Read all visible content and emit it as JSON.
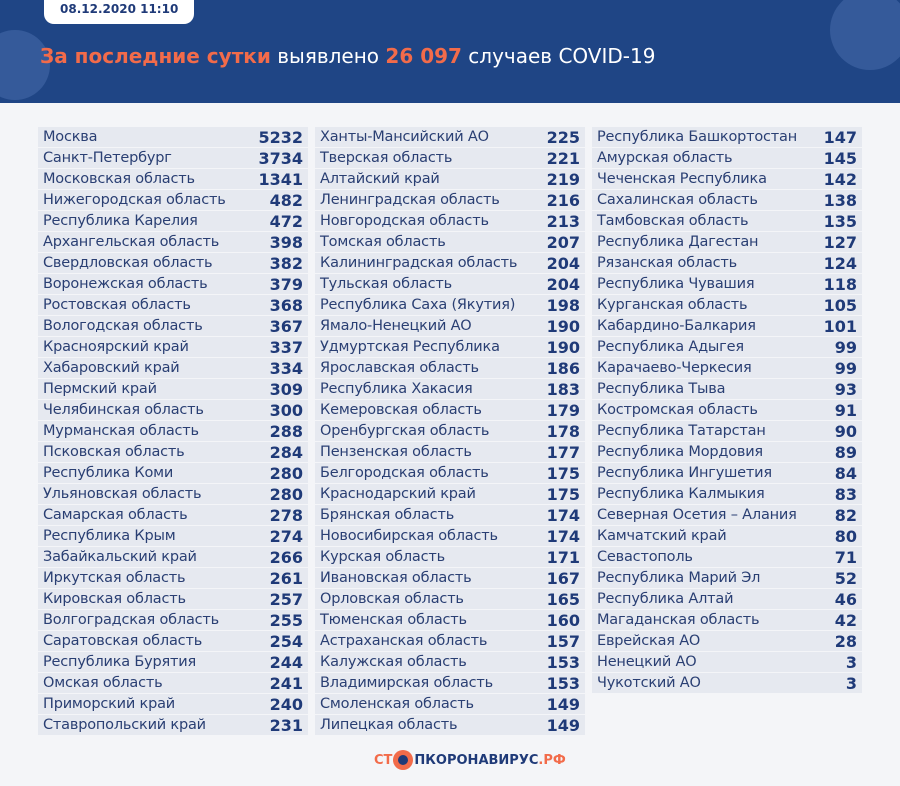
{
  "header": {
    "date": "08.12.2020 11:10",
    "title_hl1": "За последние сутки",
    "title_mid": " выявлено ",
    "title_hl2": "26 097",
    "title_end": " случаев COVID-19"
  },
  "colors": {
    "header": "#1f4585",
    "accent": "#f26b4a",
    "text": "#1f3a78"
  },
  "columns": [
    [
      [
        "Москва",
        "5232"
      ],
      [
        "Санкт-Петербург",
        "3734"
      ],
      [
        "Московская область",
        "1341"
      ],
      [
        "Нижегородская область",
        "482"
      ],
      [
        "Республика Карелия",
        "472"
      ],
      [
        "Архангельская область",
        "398"
      ],
      [
        "Свердловская область",
        "382"
      ],
      [
        "Воронежская область",
        "379"
      ],
      [
        "Ростовская область",
        "368"
      ],
      [
        "Вологодская область",
        "367"
      ],
      [
        "Красноярский край",
        "337"
      ],
      [
        "Хабаровский край",
        "334"
      ],
      [
        "Пермский край",
        "309"
      ],
      [
        "Челябинская область",
        "300"
      ],
      [
        "Мурманская область",
        "288"
      ],
      [
        "Псковская область",
        "284"
      ],
      [
        "Республика Коми",
        "280"
      ],
      [
        "Ульяновская область",
        "280"
      ],
      [
        "Самарская область",
        "278"
      ],
      [
        "Республика Крым",
        "274"
      ],
      [
        "Забайкальский край",
        "266"
      ],
      [
        "Иркутская область",
        "261"
      ],
      [
        "Кировская область",
        "257"
      ],
      [
        "Волгоградская область",
        "255"
      ],
      [
        "Саратовская область",
        "254"
      ],
      [
        "Республика Бурятия",
        "244"
      ],
      [
        "Омская область",
        "241"
      ],
      [
        "Приморский край",
        "240"
      ],
      [
        "Ставропольский край",
        "231"
      ]
    ],
    [
      [
        "Ханты-Мансийский АО",
        "225"
      ],
      [
        "Тверская область",
        "221"
      ],
      [
        "Алтайский край",
        "219"
      ],
      [
        "Ленинградская область",
        "216"
      ],
      [
        "Новгородская область",
        "213"
      ],
      [
        "Томская область",
        "207"
      ],
      [
        "Калининградская область",
        "204"
      ],
      [
        "Тульская область",
        "204"
      ],
      [
        "Республика Саха (Якутия)",
        "198"
      ],
      [
        "Ямало-Ненецкий АО",
        "190"
      ],
      [
        "Удмуртская Республика",
        "190"
      ],
      [
        "Ярославская область",
        "186"
      ],
      [
        "Республика Хакасия",
        "183"
      ],
      [
        "Кемеровская область",
        "179"
      ],
      [
        "Оренбургская область",
        "178"
      ],
      [
        "Пензенская область",
        "177"
      ],
      [
        "Белгородская область",
        "175"
      ],
      [
        "Краснодарский край",
        "175"
      ],
      [
        "Брянская область",
        "174"
      ],
      [
        "Новосибирская область",
        "174"
      ],
      [
        "Курская область",
        "171"
      ],
      [
        "Ивановская область",
        "167"
      ],
      [
        "Орловская область",
        "165"
      ],
      [
        "Тюменская область",
        "160"
      ],
      [
        "Астраханская область",
        "157"
      ],
      [
        "Калужская область",
        "153"
      ],
      [
        "Владимирская область",
        "153"
      ],
      [
        "Смоленская область",
        "149"
      ],
      [
        "Липецкая область",
        "149"
      ]
    ],
    [
      [
        "Республика Башкортостан",
        "147"
      ],
      [
        "Амурская область",
        "145"
      ],
      [
        "Чеченская Республика",
        "142"
      ],
      [
        "Сахалинская область",
        "138"
      ],
      [
        "Тамбовская область",
        "135"
      ],
      [
        "Республика Дагестан",
        "127"
      ],
      [
        "Рязанская область",
        "124"
      ],
      [
        "Республика Чувашия",
        "118"
      ],
      [
        "Курганская область",
        "105"
      ],
      [
        "Кабардино-Балкария",
        "101"
      ],
      [
        "Республика Адыгея",
        "99"
      ],
      [
        "Карачаево-Черкесия",
        "99"
      ],
      [
        "Республика Тыва",
        "93"
      ],
      [
        "Костромская область",
        "91"
      ],
      [
        "Республика Татарстан",
        "90"
      ],
      [
        "Республика Мордовия",
        "89"
      ],
      [
        "Республика Ингушетия",
        "84"
      ],
      [
        "Республика Калмыкия",
        "83"
      ],
      [
        "Северная Осетия – Алания",
        "82"
      ],
      [
        "Камчатский край",
        "80"
      ],
      [
        "Севастополь",
        "71"
      ],
      [
        "Республика Марий Эл",
        "52"
      ],
      [
        "Республика Алтай",
        "46"
      ],
      [
        "Магаданская область",
        "42"
      ],
      [
        "Еврейская АО",
        "28"
      ],
      [
        "Ненецкий АО",
        "3"
      ],
      [
        "Чукотский АО",
        "3"
      ]
    ]
  ],
  "logo": {
    "part1": "СТ",
    "part2": "ПКОРОНАВИРУС",
    "part3": ".РФ"
  }
}
